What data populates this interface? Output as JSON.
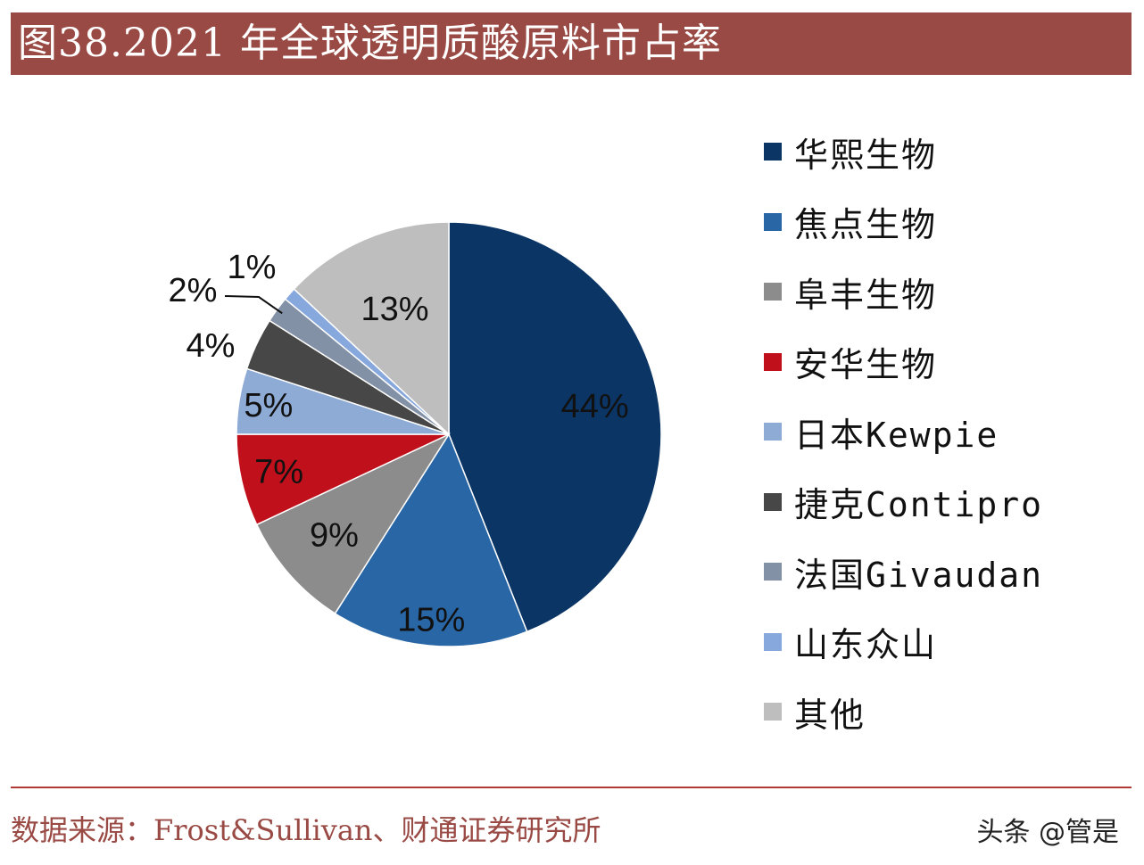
{
  "header": {
    "title": "图38.2021 年全球透明质酸原料市占率"
  },
  "chart_data": {
    "type": "pie",
    "title": "",
    "start_angle_deg": 0,
    "direction": "clockwise",
    "slices": [
      {
        "label": "华熙生物",
        "value": 44,
        "value_label": "44%",
        "color": "#0b3565"
      },
      {
        "label": "焦点生物",
        "value": 15,
        "value_label": "15%",
        "color": "#2966a6"
      },
      {
        "label": "阜丰生物",
        "value": 9,
        "value_label": "9%",
        "color": "#8c8c8c"
      },
      {
        "label": "安华生物",
        "value": 7,
        "value_label": "7%",
        "color": "#c0101b"
      },
      {
        "label": "日本Kewpie",
        "value": 5,
        "value_label": "5%",
        "color": "#8eabd6"
      },
      {
        "label": "捷克Contipro",
        "value": 4,
        "value_label": "4%",
        "color": "#474747"
      },
      {
        "label": "法国Givaudan",
        "value": 2,
        "value_label": "2%",
        "color": "#8391a6"
      },
      {
        "label": "山东众山",
        "value": 1,
        "value_label": "1%",
        "color": "#87a8dc"
      },
      {
        "label": "其他",
        "value": 13,
        "value_label": "13%",
        "color": "#bebebe"
      }
    ],
    "legend_position": "right"
  },
  "footer": {
    "source": "数据来源：Frost&Sullivan、财通证券研究所",
    "watermark": "头条 @管是"
  }
}
